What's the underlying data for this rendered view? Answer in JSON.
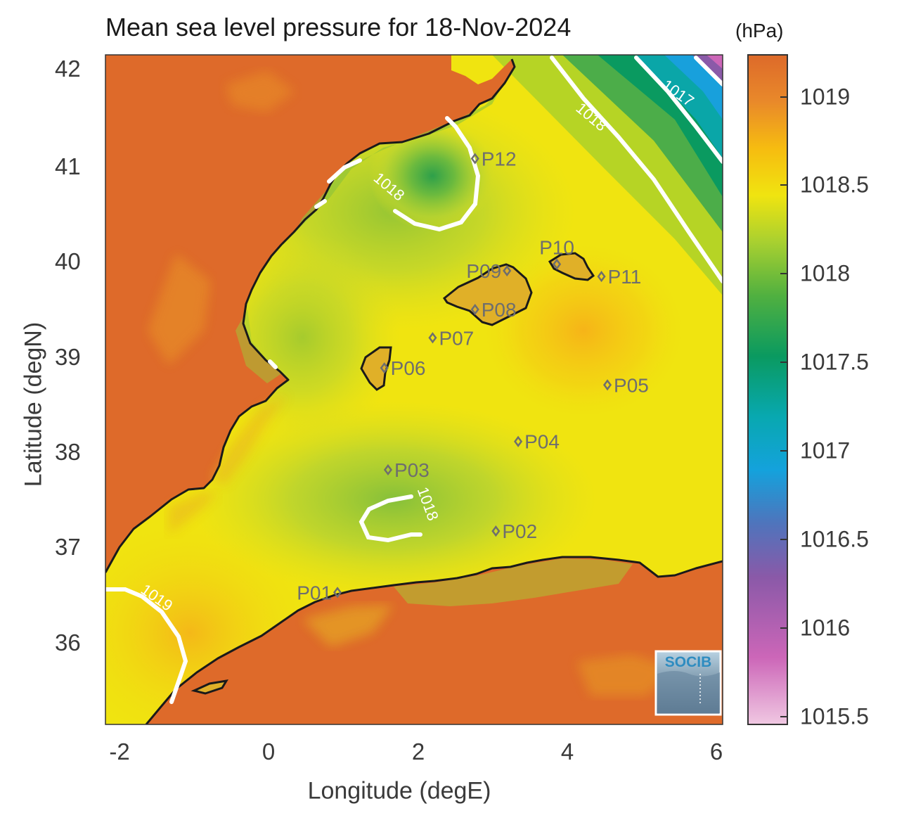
{
  "title": "Mean sea level pressure for 18-Nov-2024",
  "colorbar": {
    "unit": "(hPa)",
    "ticks": [
      "1019",
      "1018.5",
      "1018",
      "1017.5",
      "1017",
      "1016.5",
      "1016",
      "1015.5"
    ],
    "range": [
      1015.45,
      1019.25
    ],
    "colors": [
      "#f0c8e2",
      "#cc66b8",
      "#8a59a8",
      "#4f74bc",
      "#14a2dc",
      "#08a8b0",
      "#0a9a60",
      "#50b040",
      "#a8d030",
      "#f0e410",
      "#f6bc10",
      "#e9892a",
      "#dd6a2a"
    ]
  },
  "axes": {
    "xlabel": "Longitude (degE)",
    "ylabel": "Latitude (degN)",
    "xticks": [
      "-2",
      "0",
      "2",
      "4",
      "6"
    ],
    "yticks": [
      "42",
      "41",
      "40",
      "39",
      "38",
      "37",
      "36"
    ],
    "xlim": [
      -2.25,
      6.05
    ],
    "ylim": [
      35.1,
      42.2
    ]
  },
  "colors": {
    "land": "#de6a2a",
    "sea": "#f0e410",
    "coast": "#1a1a1a",
    "contour": "#ffffff",
    "station": "#6e6e6e"
  },
  "contour_labels": [
    {
      "text": "1018",
      "lon": 1.52,
      "lat": 40.76,
      "angle": 40
    },
    {
      "text": "1018",
      "lon": 4.24,
      "lat": 41.5,
      "angle": 40
    },
    {
      "text": "1017",
      "lon": 5.41,
      "lat": 41.75,
      "angle": 35
    },
    {
      "text": "1018",
      "lon": 2.02,
      "lat": 37.42,
      "angle": 70
    },
    {
      "text": "1019",
      "lon": -1.6,
      "lat": 36.4,
      "angle": 35
    }
  ],
  "stations": [
    {
      "name": "P01",
      "lon": 0.87,
      "lat": 36.5,
      "side": "left"
    },
    {
      "name": "P02",
      "lon": 3.0,
      "lat": 37.15,
      "side": "right"
    },
    {
      "name": "P03",
      "lon": 1.55,
      "lat": 37.8,
      "side": "right"
    },
    {
      "name": "P04",
      "lon": 3.3,
      "lat": 38.1,
      "side": "right"
    },
    {
      "name": "P05",
      "lon": 4.5,
      "lat": 38.7,
      "side": "right"
    },
    {
      "name": "P06",
      "lon": 1.5,
      "lat": 38.88,
      "side": "right"
    },
    {
      "name": "P07",
      "lon": 2.15,
      "lat": 39.2,
      "side": "right"
    },
    {
      "name": "P08",
      "lon": 2.72,
      "lat": 39.5,
      "side": "right"
    },
    {
      "name": "P09",
      "lon": 3.15,
      "lat": 39.91,
      "side": "left"
    },
    {
      "name": "P10",
      "lon": 3.82,
      "lat": 39.98,
      "side": "above"
    },
    {
      "name": "P11",
      "lon": 4.42,
      "lat": 39.85,
      "side": "right"
    },
    {
      "name": "P12",
      "lon": 2.72,
      "lat": 41.1,
      "side": "right"
    }
  ],
  "logo": "SOCIB"
}
